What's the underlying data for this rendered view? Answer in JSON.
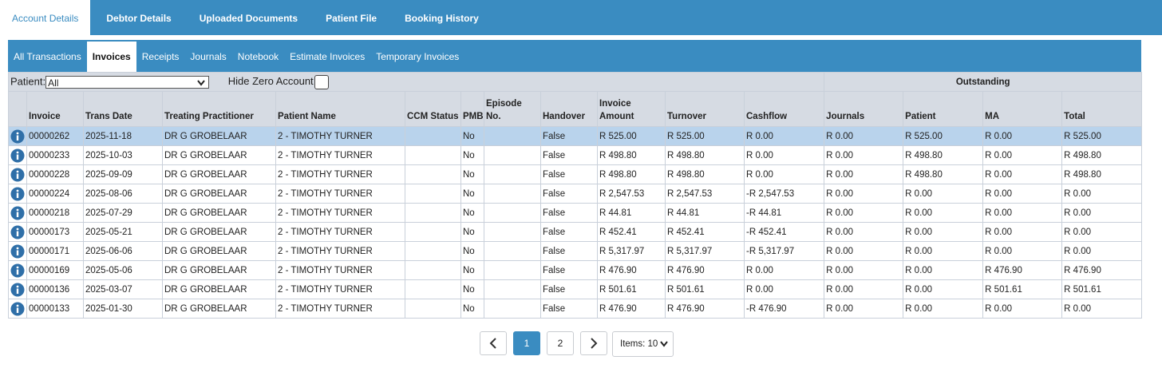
{
  "top_tabs": [
    "Account Details",
    "Debtor Details",
    "Uploaded Documents",
    "Patient File",
    "Booking History"
  ],
  "sub_tabs": [
    "All Transactions",
    "Invoices",
    "Receipts",
    "Journals",
    "Notebook",
    "Estimate Invoices",
    "Temporary Invoices"
  ],
  "filters": {
    "patient_label": "Patient:",
    "patient_value": "All",
    "hide_zero_label": "Hide Zero Account"
  },
  "table": {
    "group_header": "Outstanding",
    "columns": [
      "Invoice",
      "Trans Date",
      "Treating Practitioner",
      "Patient Name",
      "CCM Status",
      "PMB",
      "Episode No.",
      "Handover",
      "Invoice Amount",
      "Turnover",
      "Cashflow",
      "Journals",
      "Patient",
      "MA",
      "Total"
    ],
    "rows": [
      [
        "00000262",
        "2025-11-18",
        "DR G GROBELAAR",
        "2 - TIMOTHY TURNER",
        null,
        "No",
        null,
        "False",
        "R 525.00",
        "R 525.00",
        "R 0.00",
        "R 0.00",
        "R 525.00",
        "R 0.00",
        "R 525.00"
      ],
      [
        "00000233",
        "2025-10-03",
        "DR G GROBELAAR",
        "2 - TIMOTHY TURNER",
        null,
        "No",
        null,
        "False",
        "R 498.80",
        "R 498.80",
        "R 0.00",
        "R 0.00",
        "R 498.80",
        "R 0.00",
        "R 498.80"
      ],
      [
        "00000228",
        "2025-09-09",
        "DR G GROBELAAR",
        "2 - TIMOTHY TURNER",
        null,
        "No",
        null,
        "False",
        "R 498.80",
        "R 498.80",
        "R 0.00",
        "R 0.00",
        "R 498.80",
        "R 0.00",
        "R 498.80"
      ],
      [
        "00000224",
        "2025-08-06",
        "DR G GROBELAAR",
        "2 - TIMOTHY TURNER",
        null,
        "No",
        null,
        "False",
        "R 2,547.53",
        "R 2,547.53",
        "-R 2,547.53",
        "R 0.00",
        "R 0.00",
        "R 0.00",
        "R 0.00"
      ],
      [
        "00000218",
        "2025-07-29",
        "DR G GROBELAAR",
        "2 - TIMOTHY TURNER",
        null,
        "No",
        null,
        "False",
        "R 44.81",
        "R 44.81",
        "-R 44.81",
        "R 0.00",
        "R 0.00",
        "R 0.00",
        "R 0.00"
      ],
      [
        "00000173",
        "2025-05-21",
        "DR G GROBELAAR",
        "2 - TIMOTHY TURNER",
        null,
        "No",
        null,
        "False",
        "R 452.41",
        "R 452.41",
        "-R 452.41",
        "R 0.00",
        "R 0.00",
        "R 0.00",
        "R 0.00"
      ],
      [
        "00000171",
        "2025-06-06",
        "DR G GROBELAAR",
        "2 - TIMOTHY TURNER",
        null,
        "No",
        null,
        "False",
        "R 5,317.97",
        "R 5,317.97",
        "-R 5,317.97",
        "R 0.00",
        "R 0.00",
        "R 0.00",
        "R 0.00"
      ],
      [
        "00000169",
        "2025-05-06",
        "DR G GROBELAAR",
        "2 - TIMOTHY TURNER",
        null,
        "No",
        null,
        "False",
        "R 476.90",
        "R 476.90",
        "R 0.00",
        "R 0.00",
        "R 0.00",
        "R 476.90",
        "R 476.90"
      ],
      [
        "00000136",
        "2025-03-07",
        "DR G GROBELAAR",
        "2 - TIMOTHY TURNER",
        null,
        "No",
        null,
        "False",
        "R 501.61",
        "R 501.61",
        "R 0.00",
        "R 0.00",
        "R 0.00",
        "R 501.61",
        "R 501.61"
      ],
      [
        "00000133",
        "2025-01-30",
        "DR G GROBELAAR",
        "2 - TIMOTHY TURNER",
        null,
        "No",
        null,
        "False",
        "R 476.90",
        "R 476.90",
        "-R 476.90",
        "R 0.00",
        "R 0.00",
        "R 0.00",
        "R 0.00"
      ]
    ]
  },
  "pagination": {
    "pages": [
      "1",
      "2"
    ],
    "items": "Items: 10"
  }
}
